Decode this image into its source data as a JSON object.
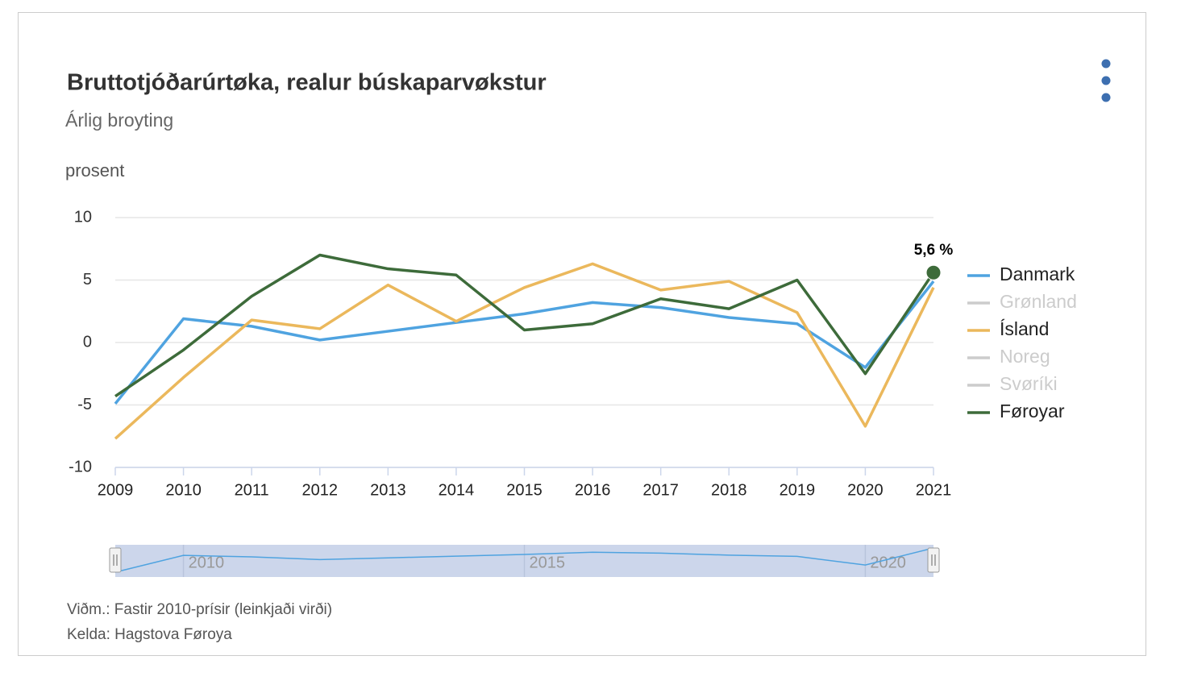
{
  "chart_data": {
    "type": "line",
    "title": "Bruttotjóðarúrtøka, realur búskaparvøkstur",
    "subtitle": "Árlig broyting",
    "y_axis_label": "prosent",
    "x": [
      2009,
      2010,
      2011,
      2012,
      2013,
      2014,
      2015,
      2016,
      2017,
      2018,
      2019,
      2020,
      2021
    ],
    "xlim": [
      2009,
      2021
    ],
    "xticks": [
      2009,
      2010,
      2011,
      2012,
      2013,
      2014,
      2015,
      2016,
      2017,
      2018,
      2019,
      2020,
      2021
    ],
    "ylim": [
      -10,
      10
    ],
    "yticks": [
      10,
      5,
      0,
      -5,
      -10
    ],
    "grid": true,
    "legend": "right",
    "series": [
      {
        "name": "Danmark",
        "color": "#4fa3e0",
        "visible": true,
        "values": [
          -4.9,
          1.9,
          1.3,
          0.2,
          0.9,
          1.6,
          2.3,
          3.2,
          2.8,
          2.0,
          1.5,
          -2.0,
          4.9
        ]
      },
      {
        "name": "Grønland",
        "color": "#cccccc",
        "visible": false,
        "values": [
          null,
          null,
          null,
          null,
          null,
          null,
          null,
          null,
          null,
          null,
          null,
          null,
          null
        ]
      },
      {
        "name": "Ísland",
        "color": "#ebb85c",
        "visible": true,
        "values": [
          -7.7,
          -2.8,
          1.8,
          1.1,
          4.6,
          1.7,
          4.4,
          6.3,
          4.2,
          4.9,
          2.4,
          -6.7,
          4.4
        ]
      },
      {
        "name": "Noreg",
        "color": "#cccccc",
        "visible": false,
        "values": [
          null,
          null,
          null,
          null,
          null,
          null,
          null,
          null,
          null,
          null,
          null,
          null,
          null
        ]
      },
      {
        "name": "Svøríki",
        "color": "#cccccc",
        "visible": false,
        "values": [
          null,
          null,
          null,
          null,
          null,
          null,
          null,
          null,
          null,
          null,
          null,
          null,
          null
        ]
      },
      {
        "name": "Føroyar",
        "color": "#3d6b3a",
        "visible": true,
        "values": [
          -4.3,
          -0.6,
          3.7,
          7.0,
          5.9,
          5.4,
          1.0,
          1.5,
          3.5,
          2.7,
          5.0,
          -2.5,
          5.6
        ],
        "value_labels": [
          null,
          null,
          null,
          null,
          null,
          null,
          null,
          null,
          null,
          null,
          null,
          null,
          "5,6 %"
        ]
      }
    ],
    "navigator": {
      "xticks": [
        2010,
        2015,
        2020
      ]
    },
    "notes": [
      "Viðm.: Fastir 2010-prísir (leinkjaði virði)",
      "Kelda: Hagstova Føroya"
    ]
  }
}
